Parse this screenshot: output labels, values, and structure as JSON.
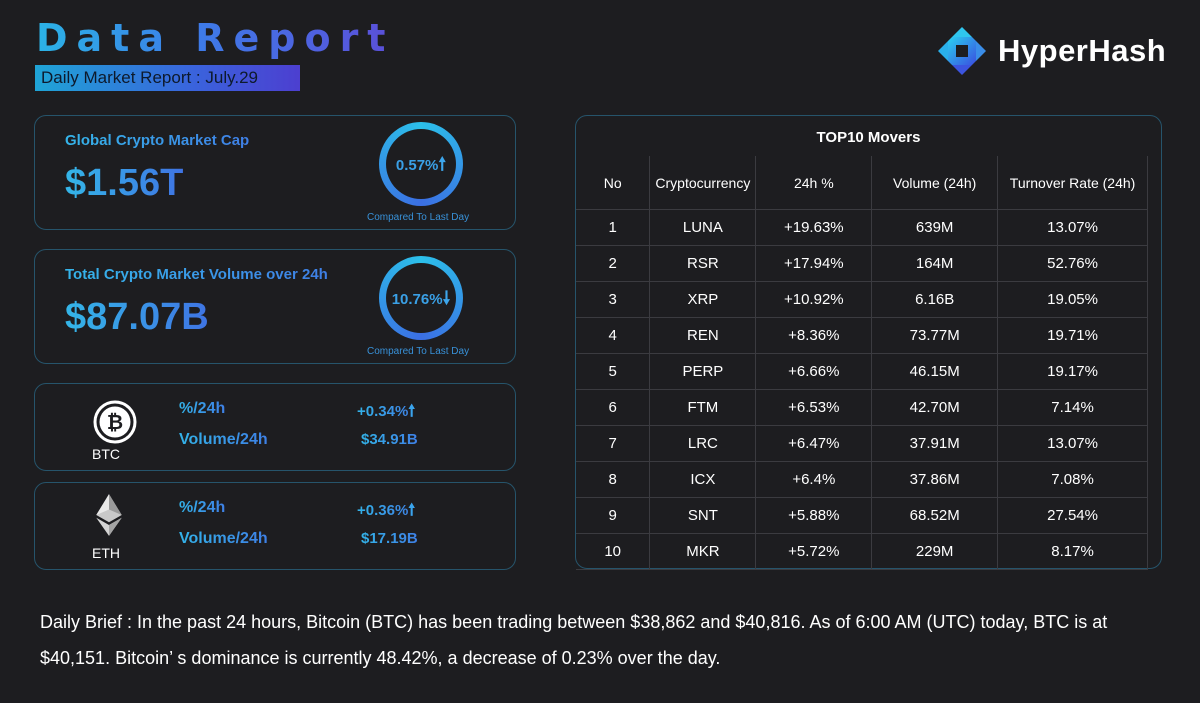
{
  "header": {
    "title": "Data Report",
    "subtitle": "Daily Market Report : July.29"
  },
  "brand": {
    "name": "HyperHash",
    "logo_icon": "hyperhash-logo-icon"
  },
  "market_cap": {
    "label": "Global Crypto Market Cap",
    "value": "$1.56T",
    "change": "0.57%",
    "direction": "up",
    "arrow": "🠕",
    "caption": "Compared To Last Day"
  },
  "market_volume": {
    "label": "Total Crypto Market Volume over 24h",
    "value": "$87.07B",
    "change": "10.76%",
    "direction": "down",
    "arrow": "🠗",
    "caption": "Compared To Last Day"
  },
  "btc": {
    "symbol": "BTC",
    "icon": "bitcoin-icon",
    "pct_label": "%/24h",
    "pct_value": "+0.34%",
    "arrow": "🠕",
    "vol_label": "Volume/24h",
    "vol_value": "$34.91B"
  },
  "eth": {
    "symbol": "ETH",
    "icon": "ethereum-icon",
    "pct_label": "%/24h",
    "pct_value": "+0.36%",
    "arrow": "🠕",
    "vol_label": "Volume/24h",
    "vol_value": "$17.19B"
  },
  "movers": {
    "title": "TOP10 Movers",
    "columns": [
      "No",
      "Cryptocurrency",
      "24h %",
      "Volume (24h)",
      "Turnover Rate (24h)"
    ],
    "rows": [
      [
        "1",
        "LUNA",
        "+19.63%",
        "639M",
        "13.07%"
      ],
      [
        "2",
        "RSR",
        "+17.94%",
        "164M",
        "52.76%"
      ],
      [
        "3",
        "XRP",
        "+10.92%",
        "6.16B",
        "19.05%"
      ],
      [
        "4",
        "REN",
        "+8.36%",
        "73.77M",
        "19.71%"
      ],
      [
        "5",
        "PERP",
        "+6.66%",
        "46.15M",
        "19.17%"
      ],
      [
        "6",
        "FTM",
        "+6.53%",
        "42.70M",
        "7.14%"
      ],
      [
        "7",
        "LRC",
        "+6.47%",
        "37.91M",
        "13.07%"
      ],
      [
        "8",
        "ICX",
        "+6.4%",
        "37.86M",
        "7.08%"
      ],
      [
        "9",
        "SNT",
        "+5.88%",
        "68.52M",
        "27.54%"
      ],
      [
        "10",
        "MKR",
        "+5.72%",
        "229M",
        "8.17%"
      ]
    ]
  },
  "brief": {
    "text": "Daily Brief : In the past 24 hours, Bitcoin (BTC) has been trading between $38,862 and $40,816. As of 6:00 AM (UTC) today, BTC is at $40,151. Bitcoin’ s dominance is currently 48.42%, a decrease of 0.23% over the day."
  },
  "colors": {
    "background": "#1d1d20",
    "accent_cyan": "#2bb3e6",
    "accent_blue": "#3d7be8",
    "accent_purple": "#5b4fd9",
    "card_border": "#26546b"
  }
}
